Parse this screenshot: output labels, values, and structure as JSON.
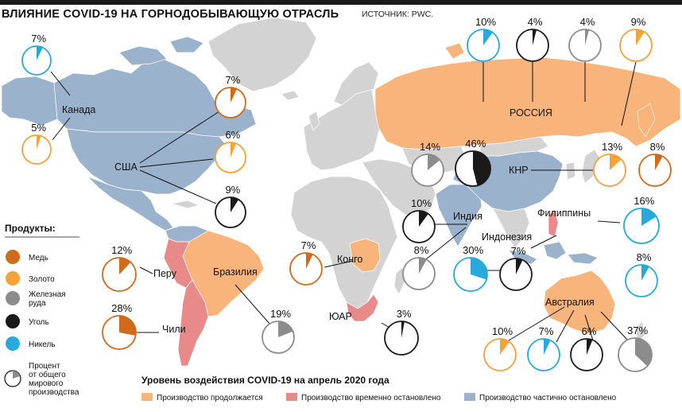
{
  "title": "ВЛИЯНИЕ COVID-19 НА ГОРНОДОБЫВАЮЩУЮ ОТРАСЛЬ",
  "source": "ИСТОЧНИК: PWC.",
  "colors": {
    "continues": "#f8b47b",
    "stopped": "#e98a8a",
    "partial": "#9ab2cc",
    "other_land": "#d3d3d3",
    "copper": "#d06b1e",
    "gold": "#f5a23a",
    "iron": "#8c8c8c",
    "coal": "#1a1a1a",
    "nickel": "#27a9dc"
  },
  "products_legend": {
    "title": "Продукты:",
    "items": [
      {
        "key": "copper",
        "label": "Медь"
      },
      {
        "key": "gold",
        "label": "Золото"
      },
      {
        "key": "iron",
        "label_lines": [
          "Железная",
          "руда"
        ]
      },
      {
        "key": "coal",
        "label": "Уголь"
      },
      {
        "key": "nickel",
        "label": "Никель"
      }
    ],
    "share_note_lines": [
      "Процент",
      "от общего",
      "мирового",
      "производства"
    ]
  },
  "impact_legend": {
    "title": "Уровень воздействия COVID-19 на апрель 2020 года",
    "items": [
      {
        "key": "continues",
        "label": "Производство продолжается"
      },
      {
        "key": "stopped",
        "label": "Производство временно остановлено"
      },
      {
        "key": "partial",
        "label": "Производство частично остановлено"
      }
    ]
  },
  "countries": {
    "canada": "Канада",
    "usa": "США",
    "russia": "РОССИЯ",
    "china": "КНР",
    "india": "Индия",
    "philippines": "Филиппины",
    "indonesia": "Индонезия",
    "congo": "Конго",
    "peru": "Перу",
    "brazil": "Бразилия",
    "chile": "Чили",
    "south_africa": "ЮАР",
    "australia": "Австралия"
  },
  "shares": [
    {
      "country": "Канада",
      "product": "nickel",
      "value": 7,
      "label": "7%"
    },
    {
      "country": "Канада",
      "product": "gold",
      "value": 5,
      "label": "5%"
    },
    {
      "country": "США",
      "product": "copper",
      "value": 7,
      "label": "7%"
    },
    {
      "country": "США",
      "product": "gold",
      "value": 6,
      "label": "6%"
    },
    {
      "country": "США",
      "product": "coal",
      "value": 9,
      "label": "9%"
    },
    {
      "country": "РОССИЯ",
      "product": "nickel",
      "value": 10,
      "label": "10%"
    },
    {
      "country": "РОССИЯ",
      "product": "coal",
      "value": 4,
      "label": "4%"
    },
    {
      "country": "РОССИЯ",
      "product": "iron",
      "value": 4,
      "label": "4%"
    },
    {
      "country": "РОССИЯ",
      "product": "gold",
      "value": 9,
      "label": "9%"
    },
    {
      "country": "КНР",
      "product": "iron",
      "value": 14,
      "label": "14%"
    },
    {
      "country": "КНР",
      "product": "coal",
      "value": 46,
      "label": "46%"
    },
    {
      "country": "КНР",
      "product": "gold",
      "value": 13,
      "label": "13%"
    },
    {
      "country": "КНР",
      "product": "copper",
      "value": 8,
      "label": "8%"
    },
    {
      "country": "Индия",
      "product": "coal",
      "value": 10,
      "label": "10%"
    },
    {
      "country": "Индия",
      "product": "iron",
      "value": 8,
      "label": "8%"
    },
    {
      "country": "Филиппины",
      "product": "nickel",
      "value": 16,
      "label": "16%"
    },
    {
      "country": "Индонезия",
      "product": "nickel",
      "value": 30,
      "label": "30%"
    },
    {
      "country": "Индонезия",
      "product": "coal",
      "value": 7,
      "label": "7%"
    },
    {
      "country": "Индонезия",
      "product": "nickel",
      "value": 8,
      "label": "8%"
    },
    {
      "country": "Конго",
      "product": "copper",
      "value": 7,
      "label": "7%"
    },
    {
      "country": "Перу",
      "product": "copper",
      "value": 12,
      "label": "12%"
    },
    {
      "country": "Чили",
      "product": "copper",
      "value": 28,
      "label": "28%"
    },
    {
      "country": "Бразилия",
      "product": "iron",
      "value": 19,
      "label": "19%"
    },
    {
      "country": "ЮАР",
      "product": "coal",
      "value": 3,
      "label": "3%"
    },
    {
      "country": "Австралия",
      "product": "gold",
      "value": 10,
      "label": "10%"
    },
    {
      "country": "Австралия",
      "product": "nickel",
      "value": 7,
      "label": "7%"
    },
    {
      "country": "Австралия",
      "product": "coal",
      "value": 6,
      "label": "6%"
    },
    {
      "country": "Австралия",
      "product": "iron",
      "value": 37,
      "label": "37%"
    }
  ]
}
